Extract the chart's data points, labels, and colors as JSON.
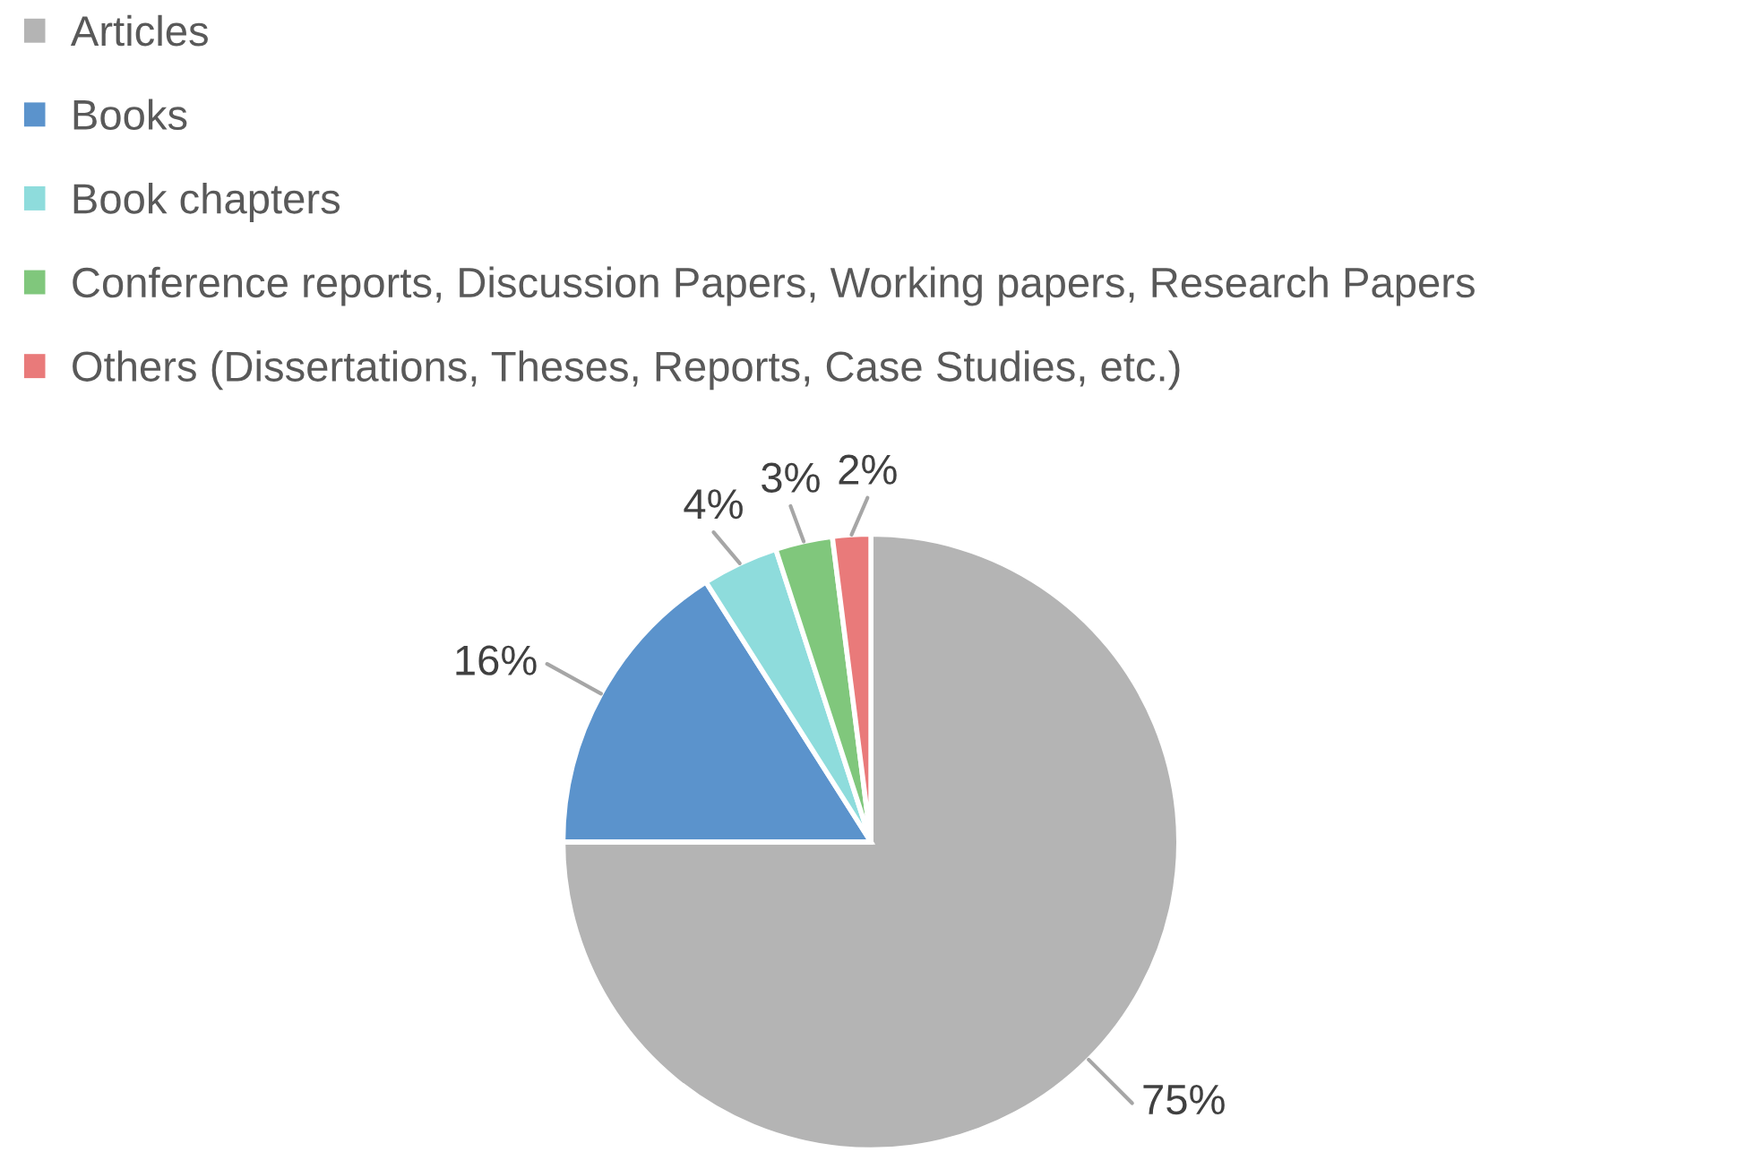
{
  "chart_data": {
    "type": "pie",
    "categories": [
      "Articles",
      "Books",
      "Book chapters",
      "Conference reports, Discussion Papers, Working papers, Research Papers",
      "Others (Dissertations, Theses, Reports, Case Studies, etc.)"
    ],
    "values": [
      75,
      16,
      4,
      3,
      2
    ],
    "colors": [
      "#b4b4b4",
      "#5b93cc",
      "#8edcdc",
      "#80c77c",
      "#e97a7a"
    ],
    "value_labels": [
      "75%",
      "16%",
      "4%",
      "3%",
      "2%"
    ],
    "legend": "top left"
  }
}
